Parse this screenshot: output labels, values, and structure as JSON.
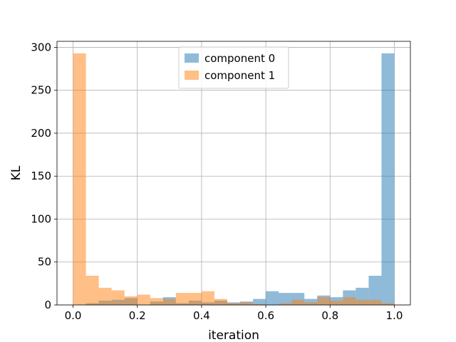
{
  "chart_data": {
    "type": "histogram",
    "xlabel": "iteration",
    "ylabel": "KL",
    "xlim": [
      -0.05,
      1.05
    ],
    "ylim": [
      0,
      307
    ],
    "xticks": [
      0.0,
      0.2,
      0.4,
      0.6,
      0.8,
      1.0
    ],
    "xtick_labels": [
      "0.0",
      "0.2",
      "0.4",
      "0.6",
      "0.8",
      "1.0"
    ],
    "yticks": [
      0,
      50,
      100,
      150,
      200,
      250,
      300
    ],
    "ytick_labels": [
      "0",
      "50",
      "100",
      "150",
      "200",
      "250",
      "300"
    ],
    "grid": true,
    "legend_position": "top-center",
    "bins": 25,
    "bin_range": [
      0.0,
      1.0
    ],
    "series": [
      {
        "name": "component 0",
        "color": "#1f77b4",
        "alpha": 0.5,
        "values": [
          0,
          2,
          5,
          6,
          8,
          0,
          4,
          9,
          2,
          5,
          3,
          5,
          3,
          4,
          7,
          16,
          14,
          14,
          7,
          11,
          9,
          17,
          20,
          34,
          293
        ]
      },
      {
        "name": "component 1",
        "color": "#ff7f0e",
        "alpha": 0.5,
        "values": [
          293,
          34,
          20,
          17,
          10,
          12,
          8,
          7,
          14,
          14,
          16,
          7,
          2,
          3,
          1,
          0,
          2,
          6,
          3,
          9,
          5,
          9,
          6,
          6,
          2
        ]
      }
    ]
  }
}
